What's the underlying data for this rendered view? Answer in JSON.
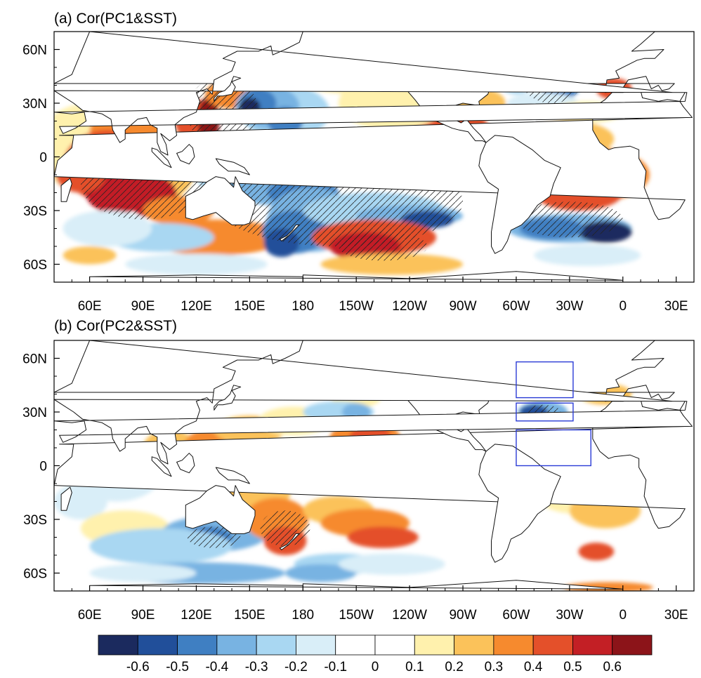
{
  "colors": {
    "land": "#ffffff",
    "coast": "#111111",
    "box": "#2a3bd6",
    "hatch": "#222222"
  },
  "panel_a": {
    "title": "(a) Cor(PC1&SST)",
    "lat_labels": [
      "60N",
      "30N",
      "0",
      "30S",
      "60S"
    ],
    "lon_labels": [
      "60E",
      "90E",
      "120E",
      "150E",
      "180",
      "150W",
      "120W",
      "90W",
      "60W",
      "30W",
      "0",
      "30E"
    ]
  },
  "panel_b": {
    "title": "(b) Cor(PC2&SST)",
    "lat_labels": [
      "60N",
      "30N",
      "0",
      "30S",
      "60S"
    ],
    "lon_labels": [
      "60E",
      "90E",
      "120E",
      "150E",
      "180",
      "150W",
      "120W",
      "90W",
      "60W",
      "30W",
      "0",
      "30E"
    ],
    "boxes": [
      {
        "name": "north-atlantic-box",
        "lon": [
          -60,
          -28
        ],
        "lat": [
          38,
          58
        ]
      },
      {
        "name": "subtropical-atlantic-box",
        "lon": [
          -60,
          -28
        ],
        "lat": [
          25,
          35
        ]
      },
      {
        "name": "tropical-atlantic-box",
        "lon": [
          -60,
          -18
        ],
        "lat": [
          0,
          20
        ]
      }
    ]
  },
  "colorbar": {
    "labels": [
      "-0.6",
      "-0.5",
      "-0.4",
      "-0.3",
      "-0.2",
      "-0.1",
      "0",
      "0.1",
      "0.2",
      "0.3",
      "0.4",
      "0.5",
      "0.6"
    ],
    "colors": [
      "#1b2a5e",
      "#214f9a",
      "#3f7fc2",
      "#78b3e2",
      "#a9d7f2",
      "#d9eef8",
      "#ffffff",
      "#ffffff",
      "#fff1ad",
      "#fbc25a",
      "#f68a2e",
      "#e4502a",
      "#c31f25",
      "#8c1419"
    ]
  }
}
